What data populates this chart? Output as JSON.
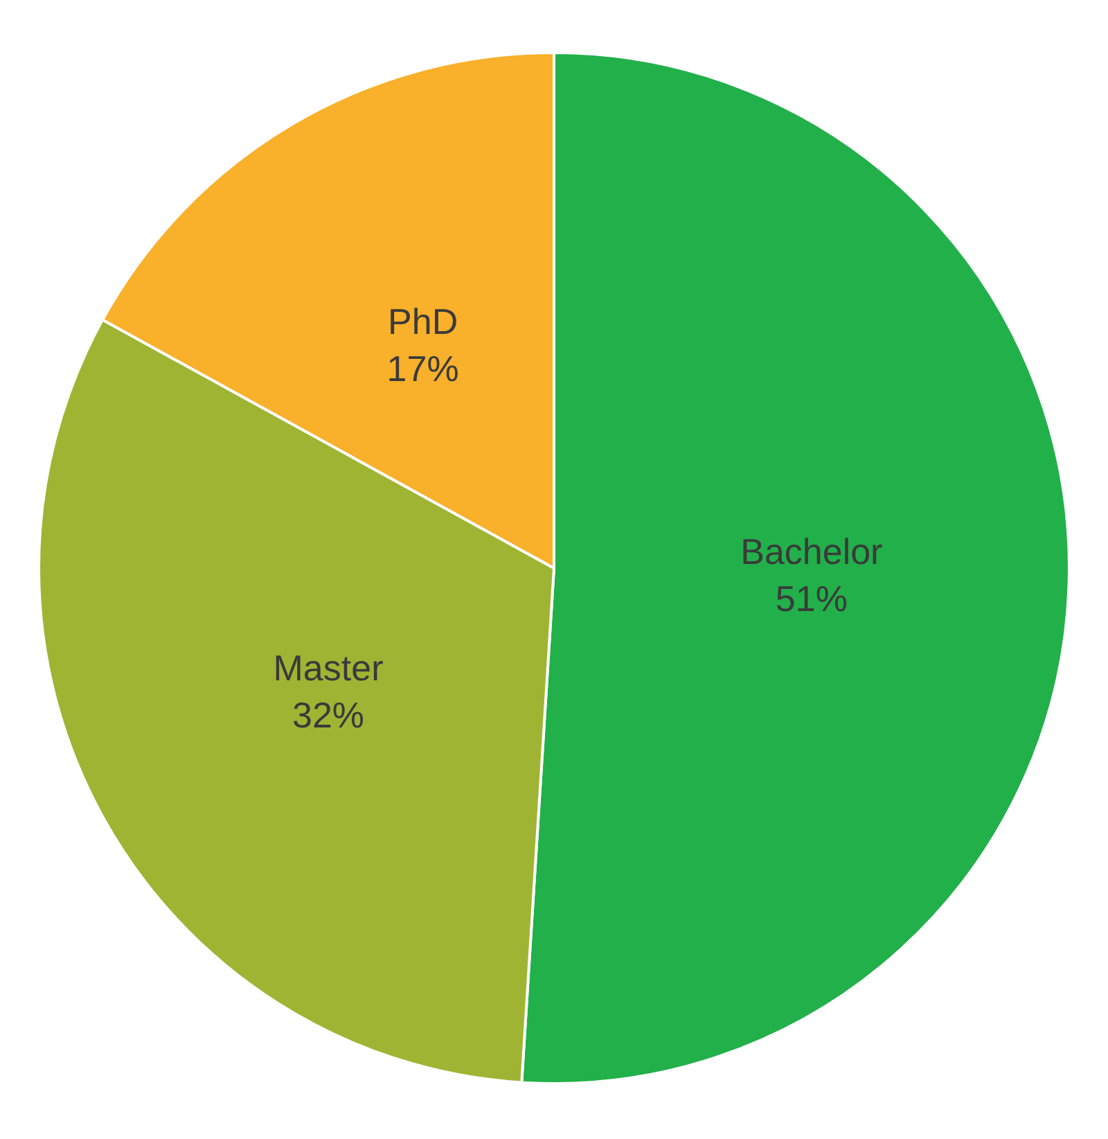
{
  "chart_data": {
    "type": "pie",
    "categories": [
      "Bachelor",
      "Master",
      "PhD"
    ],
    "values": [
      51,
      32,
      17
    ],
    "colors": [
      "#22b04a",
      "#a0b433",
      "#f9b02a"
    ],
    "value_labels": [
      "51%",
      "32%",
      "17%"
    ],
    "legend": false
  }
}
